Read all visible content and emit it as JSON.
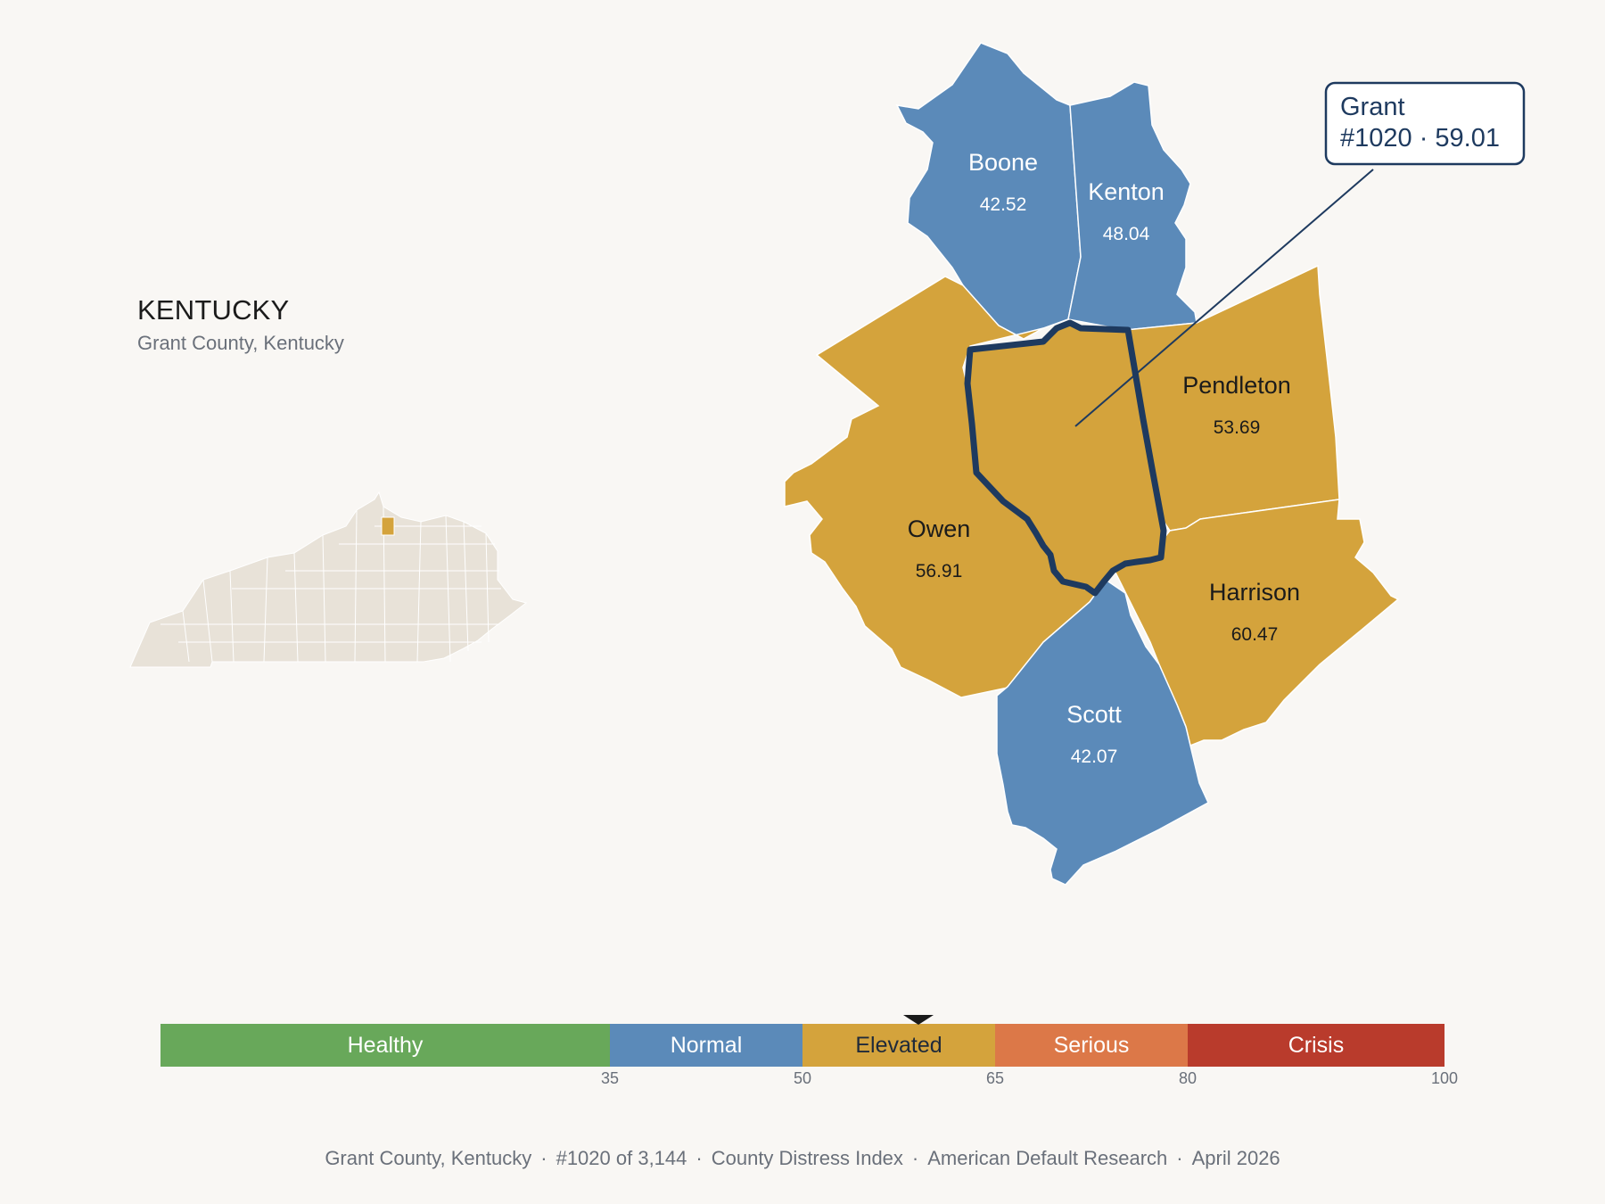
{
  "header": {
    "state_title": "KENTUCKY",
    "subtitle": "Grant County, Kentucky"
  },
  "map": {
    "focus": {
      "name": "Grant",
      "rank": "#1020",
      "score": "59.01",
      "color": "#d4a33c",
      "outline": "#1e3a5f"
    },
    "callout": {
      "line1": "Grant",
      "line2": "#1020 · 59.01"
    },
    "counties": [
      {
        "name": "Boone",
        "score": "42.52",
        "color": "#5b8ab9"
      },
      {
        "name": "Kenton",
        "score": "48.04",
        "color": "#5b8ab9"
      },
      {
        "name": "Pendleton",
        "score": "53.69",
        "color": "#d4a33c"
      },
      {
        "name": "Owen",
        "score": "56.91",
        "color": "#d4a33c"
      },
      {
        "name": "Harrison",
        "score": "60.47",
        "color": "#d4a33c"
      },
      {
        "name": "Scott",
        "score": "42.07",
        "color": "#5b8ab9"
      }
    ],
    "inset": {
      "fill": "#e8e2d8",
      "highlight": "#d4a33c"
    }
  },
  "legend": {
    "bins": [
      {
        "label": "Healthy",
        "color": "#68a85a",
        "from": 0,
        "to": 35
      },
      {
        "label": "Normal",
        "color": "#5b8ab9",
        "from": 35,
        "to": 50
      },
      {
        "label": "Elevated",
        "color": "#d4a33c",
        "from": 50,
        "to": 65
      },
      {
        "label": "Serious",
        "color": "#dc7848",
        "from": 65,
        "to": 80
      },
      {
        "label": "Crisis",
        "color": "#b93b2c",
        "from": 80,
        "to": 100
      }
    ],
    "ticks": [
      "35",
      "50",
      "65",
      "80",
      "100"
    ],
    "marker_value": 59.01
  },
  "footer": {
    "county": "Grant County, Kentucky",
    "rank": "#1020 of 3,144",
    "index": "County Distress Index",
    "org": "American Default Research",
    "date": "April 2026"
  }
}
